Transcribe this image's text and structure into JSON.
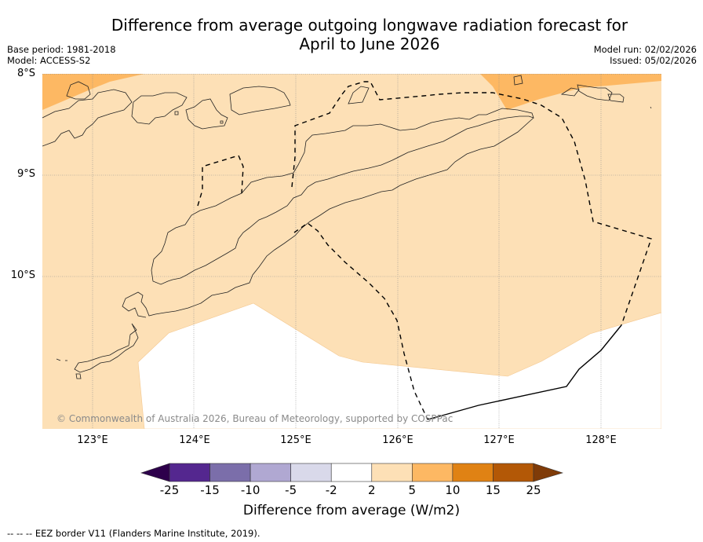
{
  "header": {
    "title_line1": "Difference from average outgoing longwave radiation forecast for",
    "title_line2": "April to June 2026",
    "base_period": "Base period: 1981-2018",
    "model": "Model: ACCESS-S2",
    "model_run": "Model run: 02/02/2026",
    "issued": "Issued: 05/02/2026"
  },
  "map": {
    "lat_labels": [
      "8°S",
      "9°S",
      "10°S"
    ],
    "lon_labels": [
      "123°E",
      "124°E",
      "125°E",
      "126°E",
      "127°E",
      "128°E"
    ],
    "copyright": "© Commonwealth of Australia 2026, Bureau of Meteorology, supported by COSPPac",
    "extent": {
      "lon_min": 122.5,
      "lon_max": 128.6,
      "lat_min": -11.5,
      "lat_max": -8.0
    }
  },
  "chart_data": {
    "type": "heatmap",
    "title": "Difference from average outgoing longwave radiation forecast for April to June 2026",
    "variable": "Outgoing longwave radiation anomaly",
    "units": "W/m2",
    "regions": [
      {
        "name": "north-west corner",
        "category": "5 to 10"
      },
      {
        "name": "north-east corner",
        "category": "5 to 10"
      },
      {
        "name": "most of domain",
        "category": "2 to 5"
      },
      {
        "name": "southern central sea",
        "category": "-2 to 2"
      }
    ],
    "grid_lons": [
      123,
      124,
      125,
      126,
      127,
      128
    ],
    "grid_lats": [
      -8,
      -9,
      -10
    ]
  },
  "colorbar": {
    "ticks": [
      "-25",
      "-15",
      "-10",
      "-5",
      "-2",
      "2",
      "5",
      "10",
      "15",
      "25"
    ],
    "colors": [
      "#54278f",
      "#7b6eaa",
      "#b0a8d2",
      "#d9d9ea",
      "#ffffff",
      "#fde0b6",
      "#fdb863",
      "#e08214",
      "#b35806"
    ],
    "under_color": "#2d004b",
    "over_color": "#7f3b08",
    "label": "Difference from average (W/m2)"
  },
  "footnote": "--  --  -- EEZ border V11 (Flanders Marine Institute, 2019)."
}
